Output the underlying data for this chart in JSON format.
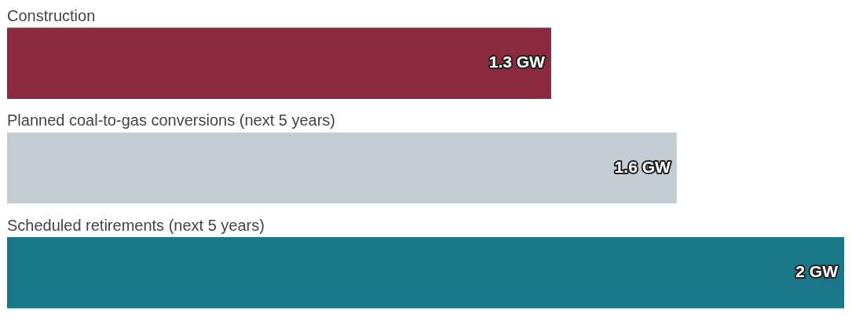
{
  "chart_data": {
    "type": "bar",
    "orientation": "horizontal",
    "categories": [
      "Construction",
      "Planned coal-to-gas conversions (next 5 years)",
      "Scheduled retirements (next 5 years)"
    ],
    "values": [
      1.3,
      1.6,
      2
    ],
    "colors": [
      "#8b2a3e",
      "#c4cdd3",
      "#1a7689"
    ],
    "value_labels": [
      "1.3 GW",
      "1.6 GW",
      "2 GW"
    ],
    "xlim": [
      0,
      2
    ],
    "tick_labels": "y"
  }
}
